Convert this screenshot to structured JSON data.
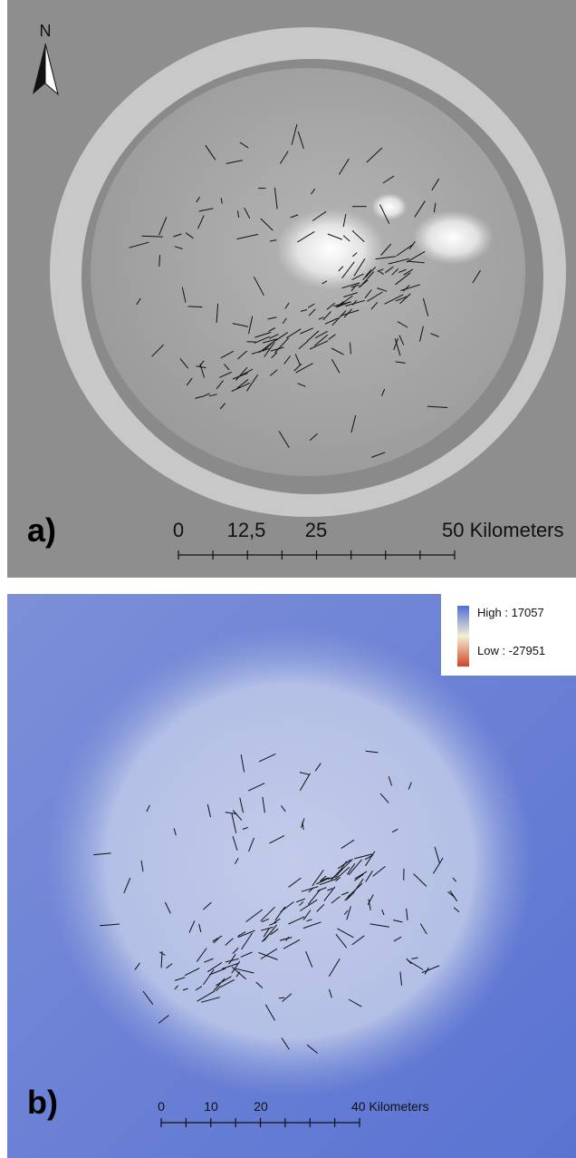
{
  "panel_a": {
    "label": "a)",
    "north": "N",
    "scale_bar": [
      "0",
      "12,5",
      "25",
      "50 Kilometers"
    ]
  },
  "panel_b": {
    "label": "b)",
    "legend": {
      "high": "High : 17057",
      "low": "Low : -27951"
    },
    "scale_bar": [
      "0",
      "10",
      "20",
      "40 Kilometers"
    ]
  }
}
